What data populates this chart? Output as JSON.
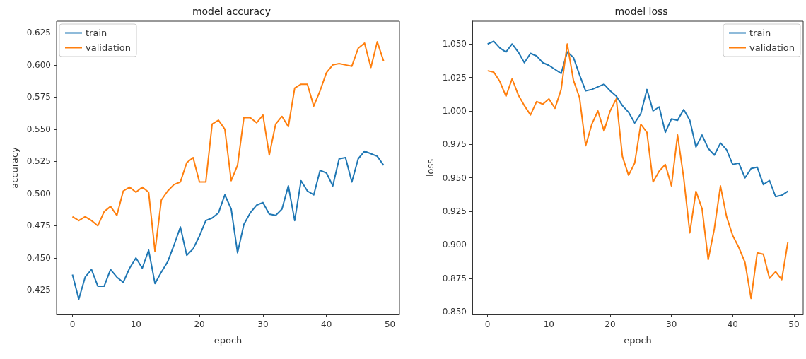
{
  "chart_data": [
    {
      "type": "line",
      "title": "model accuracy",
      "xlabel": "epoch",
      "ylabel": "accuracy",
      "x": [
        0,
        1,
        2,
        3,
        4,
        5,
        6,
        7,
        8,
        9,
        10,
        11,
        12,
        13,
        14,
        15,
        16,
        17,
        18,
        19,
        20,
        21,
        22,
        23,
        24,
        25,
        26,
        27,
        28,
        29,
        30,
        31,
        32,
        33,
        34,
        35,
        36,
        37,
        38,
        39,
        40,
        41,
        42,
        43,
        44,
        45,
        46,
        47,
        48,
        49
      ],
      "series": [
        {
          "name": "train",
          "color": "#1f77b4",
          "values": [
            0.437,
            0.418,
            0.435,
            0.441,
            0.428,
            0.428,
            0.441,
            0.435,
            0.431,
            0.442,
            0.45,
            0.442,
            0.456,
            0.43,
            0.439,
            0.447,
            0.46,
            0.474,
            0.452,
            0.457,
            0.467,
            0.479,
            0.481,
            0.485,
            0.499,
            0.488,
            0.454,
            0.476,
            0.485,
            0.491,
            0.493,
            0.484,
            0.483,
            0.488,
            0.506,
            0.479,
            0.51,
            0.502,
            0.499,
            0.518,
            0.516,
            0.506,
            0.527,
            0.528,
            0.509,
            0.527,
            0.533,
            0.531,
            0.529,
            0.522
          ]
        },
        {
          "name": "validation",
          "color": "#ff7f0e",
          "values": [
            0.482,
            0.479,
            0.482,
            0.479,
            0.475,
            0.486,
            0.49,
            0.483,
            0.502,
            0.505,
            0.501,
            0.505,
            0.501,
            0.455,
            0.495,
            0.502,
            0.507,
            0.509,
            0.524,
            0.528,
            0.509,
            0.509,
            0.554,
            0.557,
            0.55,
            0.51,
            0.522,
            0.559,
            0.559,
            0.555,
            0.561,
            0.53,
            0.554,
            0.56,
            0.552,
            0.582,
            0.585,
            0.585,
            0.568,
            0.58,
            0.594,
            0.6,
            0.601,
            0.6,
            0.599,
            0.613,
            0.617,
            0.598,
            0.618,
            0.603
          ]
        }
      ],
      "xlim": [
        -2.5,
        51.5
      ],
      "xticks": [
        0,
        10,
        20,
        30,
        40,
        50
      ],
      "ylim": [
        0.406,
        0.634
      ],
      "yticks": [
        {
          "value": 0.425,
          "label": "0.425"
        },
        {
          "value": 0.45,
          "label": "0.450"
        },
        {
          "value": 0.475,
          "label": "0.475"
        },
        {
          "value": 0.5,
          "label": "0.500"
        },
        {
          "value": 0.525,
          "label": "0.525"
        },
        {
          "value": 0.55,
          "label": "0.550"
        },
        {
          "value": 0.575,
          "label": "0.575"
        },
        {
          "value": 0.6,
          "label": "0.600"
        },
        {
          "value": 0.625,
          "label": "0.625"
        }
      ],
      "legend": "top left",
      "grid": false,
      "marker": "none",
      "line_style": "solid"
    },
    {
      "type": "line",
      "title": "model loss",
      "xlabel": "epoch",
      "ylabel": "loss",
      "x": [
        0,
        1,
        2,
        3,
        4,
        5,
        6,
        7,
        8,
        9,
        10,
        11,
        12,
        13,
        14,
        15,
        16,
        17,
        18,
        19,
        20,
        21,
        22,
        23,
        24,
        25,
        26,
        27,
        28,
        29,
        30,
        31,
        32,
        33,
        34,
        35,
        36,
        37,
        38,
        39,
        40,
        41,
        42,
        43,
        44,
        45,
        46,
        47,
        48,
        49
      ],
      "series": [
        {
          "name": "train",
          "color": "#1f77b4",
          "values": [
            1.05,
            1.052,
            1.047,
            1.044,
            1.05,
            1.044,
            1.036,
            1.043,
            1.041,
            1.036,
            1.034,
            1.031,
            1.028,
            1.044,
            1.04,
            1.027,
            1.015,
            1.016,
            1.018,
            1.02,
            1.015,
            1.011,
            1.004,
            0.999,
            0.991,
            0.998,
            1.016,
            1.0,
            1.003,
            0.984,
            0.994,
            0.993,
            1.001,
            0.993,
            0.973,
            0.982,
            0.972,
            0.967,
            0.976,
            0.971,
            0.96,
            0.961,
            0.95,
            0.957,
            0.958,
            0.945,
            0.948,
            0.936,
            0.937,
            0.94
          ]
        },
        {
          "name": "validation",
          "color": "#ff7f0e",
          "values": [
            1.03,
            1.029,
            1.022,
            1.011,
            1.024,
            1.012,
            1.004,
            0.997,
            1.007,
            1.005,
            1.009,
            1.002,
            1.016,
            1.05,
            1.023,
            1.01,
            0.974,
            0.99,
            1.0,
            0.985,
            1.0,
            1.009,
            0.966,
            0.952,
            0.961,
            0.99,
            0.984,
            0.947,
            0.955,
            0.96,
            0.944,
            0.982,
            0.95,
            0.909,
            0.94,
            0.927,
            0.889,
            0.912,
            0.944,
            0.921,
            0.907,
            0.898,
            0.887,
            0.86,
            0.894,
            0.893,
            0.875,
            0.88,
            0.874,
            0.902
          ]
        }
      ],
      "xlim": [
        -2.5,
        51.5
      ],
      "xticks": [
        0,
        10,
        20,
        30,
        40,
        50
      ],
      "ylim": [
        0.848,
        1.067
      ],
      "yticks": [
        {
          "value": 0.85,
          "label": "0.850"
        },
        {
          "value": 0.875,
          "label": "0.875"
        },
        {
          "value": 0.9,
          "label": "0.900"
        },
        {
          "value": 0.925,
          "label": "0.925"
        },
        {
          "value": 0.95,
          "label": "0.950"
        },
        {
          "value": 0.975,
          "label": "0.975"
        },
        {
          "value": 1.0,
          "label": "1.000"
        },
        {
          "value": 1.025,
          "label": "1.025"
        },
        {
          "value": 1.05,
          "label": "1.050"
        }
      ],
      "legend": "top right",
      "grid": false,
      "marker": "none",
      "line_style": "solid"
    }
  ]
}
